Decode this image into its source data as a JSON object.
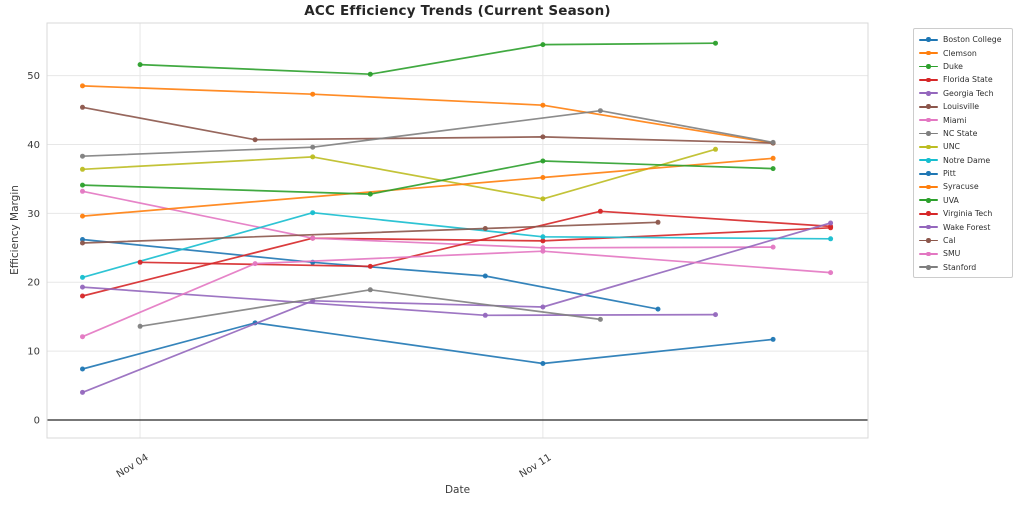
{
  "chart": {
    "title": "ACC Efficiency Trends (Current Season)",
    "xlabel": "Date",
    "ylabel": "Efficiency Margin"
  },
  "chart_data": {
    "type": "line",
    "title": "ACC Efficiency Trends (Current Season)",
    "xlabel": "Date",
    "ylabel": "Efficiency Margin",
    "x_tick_labels": [
      "Nov 04",
      "Nov 11"
    ],
    "y_tick_labels": [
      0,
      10,
      20,
      30,
      40,
      50
    ],
    "x_range_dates": [
      "Nov 03",
      "Nov 16"
    ],
    "ylim": [
      -2.6,
      57.6
    ],
    "grid": true,
    "zero_baseline": true,
    "legend_position": "outside-right",
    "marker": "dot",
    "series": [
      {
        "name": "Boston College",
        "color": "#1f77b4",
        "points": [
          {
            "date": "Nov 03",
            "value": 26.2
          },
          {
            "date": "Nov 07",
            "value": 22.9
          },
          {
            "date": "Nov 10",
            "value": 20.9
          },
          {
            "date": "Nov 13",
            "value": 16.1
          }
        ]
      },
      {
        "name": "Clemson",
        "color": "#ff7f0e",
        "points": [
          {
            "date": "Nov 03",
            "value": 48.5
          },
          {
            "date": "Nov 07",
            "value": 47.3
          },
          {
            "date": "Nov 11",
            "value": 45.7
          },
          {
            "date": "Nov 15",
            "value": 40.2
          }
        ]
      },
      {
        "name": "Duke",
        "color": "#2ca02c",
        "points": [
          {
            "date": "Nov 04",
            "value": 51.6
          },
          {
            "date": "Nov 08",
            "value": 50.2
          },
          {
            "date": "Nov 11",
            "value": 54.5
          },
          {
            "date": "Nov 14",
            "value": 54.7
          }
        ]
      },
      {
        "name": "Florida State",
        "color": "#d62728",
        "points": [
          {
            "date": "Nov 03",
            "value": 18.0
          },
          {
            "date": "Nov 07",
            "value": 26.4
          },
          {
            "date": "Nov 11",
            "value": 26.0
          },
          {
            "date": "Nov 16",
            "value": 27.9
          }
        ]
      },
      {
        "name": "Georgia Tech",
        "color": "#9467bd",
        "points": [
          {
            "date": "Nov 03",
            "value": 19.3
          },
          {
            "date": "Nov 10",
            "value": 15.2
          },
          {
            "date": "Nov 14",
            "value": 15.3
          }
        ]
      },
      {
        "name": "Louisville",
        "color": "#8c564b",
        "points": [
          {
            "date": "Nov 03",
            "value": 45.4
          },
          {
            "date": "Nov 06",
            "value": 40.7
          },
          {
            "date": "Nov 11",
            "value": 41.1
          },
          {
            "date": "Nov 15",
            "value": 40.2
          }
        ]
      },
      {
        "name": "Miami",
        "color": "#e377c2",
        "points": [
          {
            "date": "Nov 03",
            "value": 33.2
          },
          {
            "date": "Nov 07",
            "value": 26.4
          },
          {
            "date": "Nov 11",
            "value": 25.0
          },
          {
            "date": "Nov 15",
            "value": 25.1
          }
        ]
      },
      {
        "name": "NC State",
        "color": "#7f7f7f",
        "points": [
          {
            "date": "Nov 03",
            "value": 38.3
          },
          {
            "date": "Nov 07",
            "value": 39.6
          },
          {
            "date": "Nov 12",
            "value": 44.9
          },
          {
            "date": "Nov 15",
            "value": 40.3
          }
        ]
      },
      {
        "name": "UNC",
        "color": "#bcbd22",
        "points": [
          {
            "date": "Nov 03",
            "value": 36.4
          },
          {
            "date": "Nov 07",
            "value": 38.2
          },
          {
            "date": "Nov 11",
            "value": 32.1
          },
          {
            "date": "Nov 14",
            "value": 39.3
          }
        ]
      },
      {
        "name": "Notre Dame",
        "color": "#17becf",
        "points": [
          {
            "date": "Nov 03",
            "value": 20.7
          },
          {
            "date": "Nov 07",
            "value": 30.1
          },
          {
            "date": "Nov 11",
            "value": 26.6
          },
          {
            "date": "Nov 16",
            "value": 26.3
          }
        ]
      },
      {
        "name": "Pitt",
        "color": "#1f77b4",
        "points": [
          {
            "date": "Nov 03",
            "value": 7.4
          },
          {
            "date": "Nov 06",
            "value": 14.1
          },
          {
            "date": "Nov 11",
            "value": 8.2
          },
          {
            "date": "Nov 15",
            "value": 11.7
          }
        ]
      },
      {
        "name": "Syracuse",
        "color": "#ff7f0e",
        "points": [
          {
            "date": "Nov 03",
            "value": 29.6
          },
          {
            "date": "Nov 11",
            "value": 35.2
          },
          {
            "date": "Nov 15",
            "value": 38.0
          }
        ]
      },
      {
        "name": "UVA",
        "color": "#2ca02c",
        "points": [
          {
            "date": "Nov 03",
            "value": 34.1
          },
          {
            "date": "Nov 08",
            "value": 32.8
          },
          {
            "date": "Nov 11",
            "value": 37.6
          },
          {
            "date": "Nov 15",
            "value": 36.5
          }
        ]
      },
      {
        "name": "Virginia Tech",
        "color": "#d62728",
        "points": [
          {
            "date": "Nov 04",
            "value": 22.9
          },
          {
            "date": "Nov 08",
            "value": 22.3
          },
          {
            "date": "Nov 12",
            "value": 30.3
          },
          {
            "date": "Nov 16",
            "value": 28.1
          }
        ]
      },
      {
        "name": "Wake Forest",
        "color": "#9467bd",
        "points": [
          {
            "date": "Nov 03",
            "value": 4.0
          },
          {
            "date": "Nov 07",
            "value": 17.3
          },
          {
            "date": "Nov 11",
            "value": 16.4
          },
          {
            "date": "Nov 16",
            "value": 28.6
          }
        ]
      },
      {
        "name": "Cal",
        "color": "#8c564b",
        "points": [
          {
            "date": "Nov 03",
            "value": 25.7
          },
          {
            "date": "Nov 10",
            "value": 27.8
          },
          {
            "date": "Nov 13",
            "value": 28.7
          }
        ]
      },
      {
        "name": "SMU",
        "color": "#e377c2",
        "points": [
          {
            "date": "Nov 03",
            "value": 12.1
          },
          {
            "date": "Nov 06",
            "value": 22.7
          },
          {
            "date": "Nov 11",
            "value": 24.5
          },
          {
            "date": "Nov 16",
            "value": 21.4
          }
        ]
      },
      {
        "name": "Stanford",
        "color": "#7f7f7f",
        "points": [
          {
            "date": "Nov 04",
            "value": 13.6
          },
          {
            "date": "Nov 08",
            "value": 18.9
          },
          {
            "date": "Nov 12",
            "value": 14.6
          }
        ]
      }
    ]
  }
}
